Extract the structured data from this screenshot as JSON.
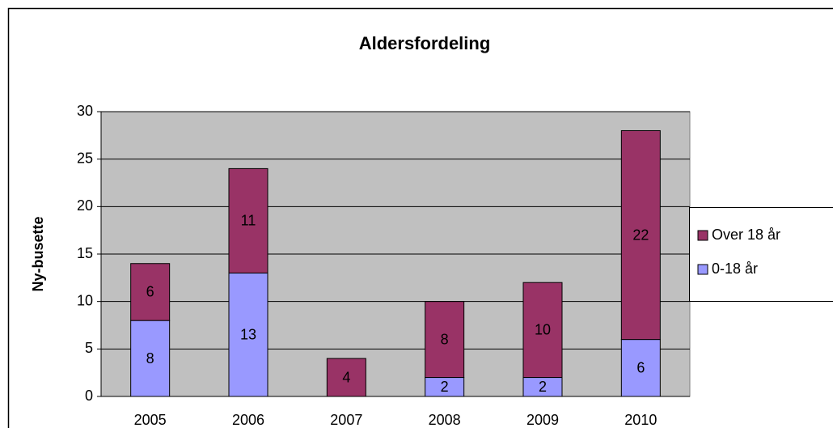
{
  "chart_data": {
    "type": "stacked_bar",
    "title": "Aldersfordeling",
    "y_label": "Ny-busette",
    "categories": [
      "2005",
      "2006",
      "2007",
      "2008",
      "2009",
      "2010"
    ],
    "series": [
      {
        "name": "0-18 år",
        "color": "#9999ff",
        "values": [
          8,
          13,
          0,
          2,
          2,
          6
        ]
      },
      {
        "name": "Over 18 år",
        "color": "#993366",
        "values": [
          6,
          11,
          4,
          8,
          10,
          22
        ]
      }
    ],
    "ylim": [
      0,
      30
    ],
    "yticks": [
      0,
      5,
      10,
      15,
      20,
      25,
      30
    ],
    "grid": true,
    "legend": "right"
  }
}
